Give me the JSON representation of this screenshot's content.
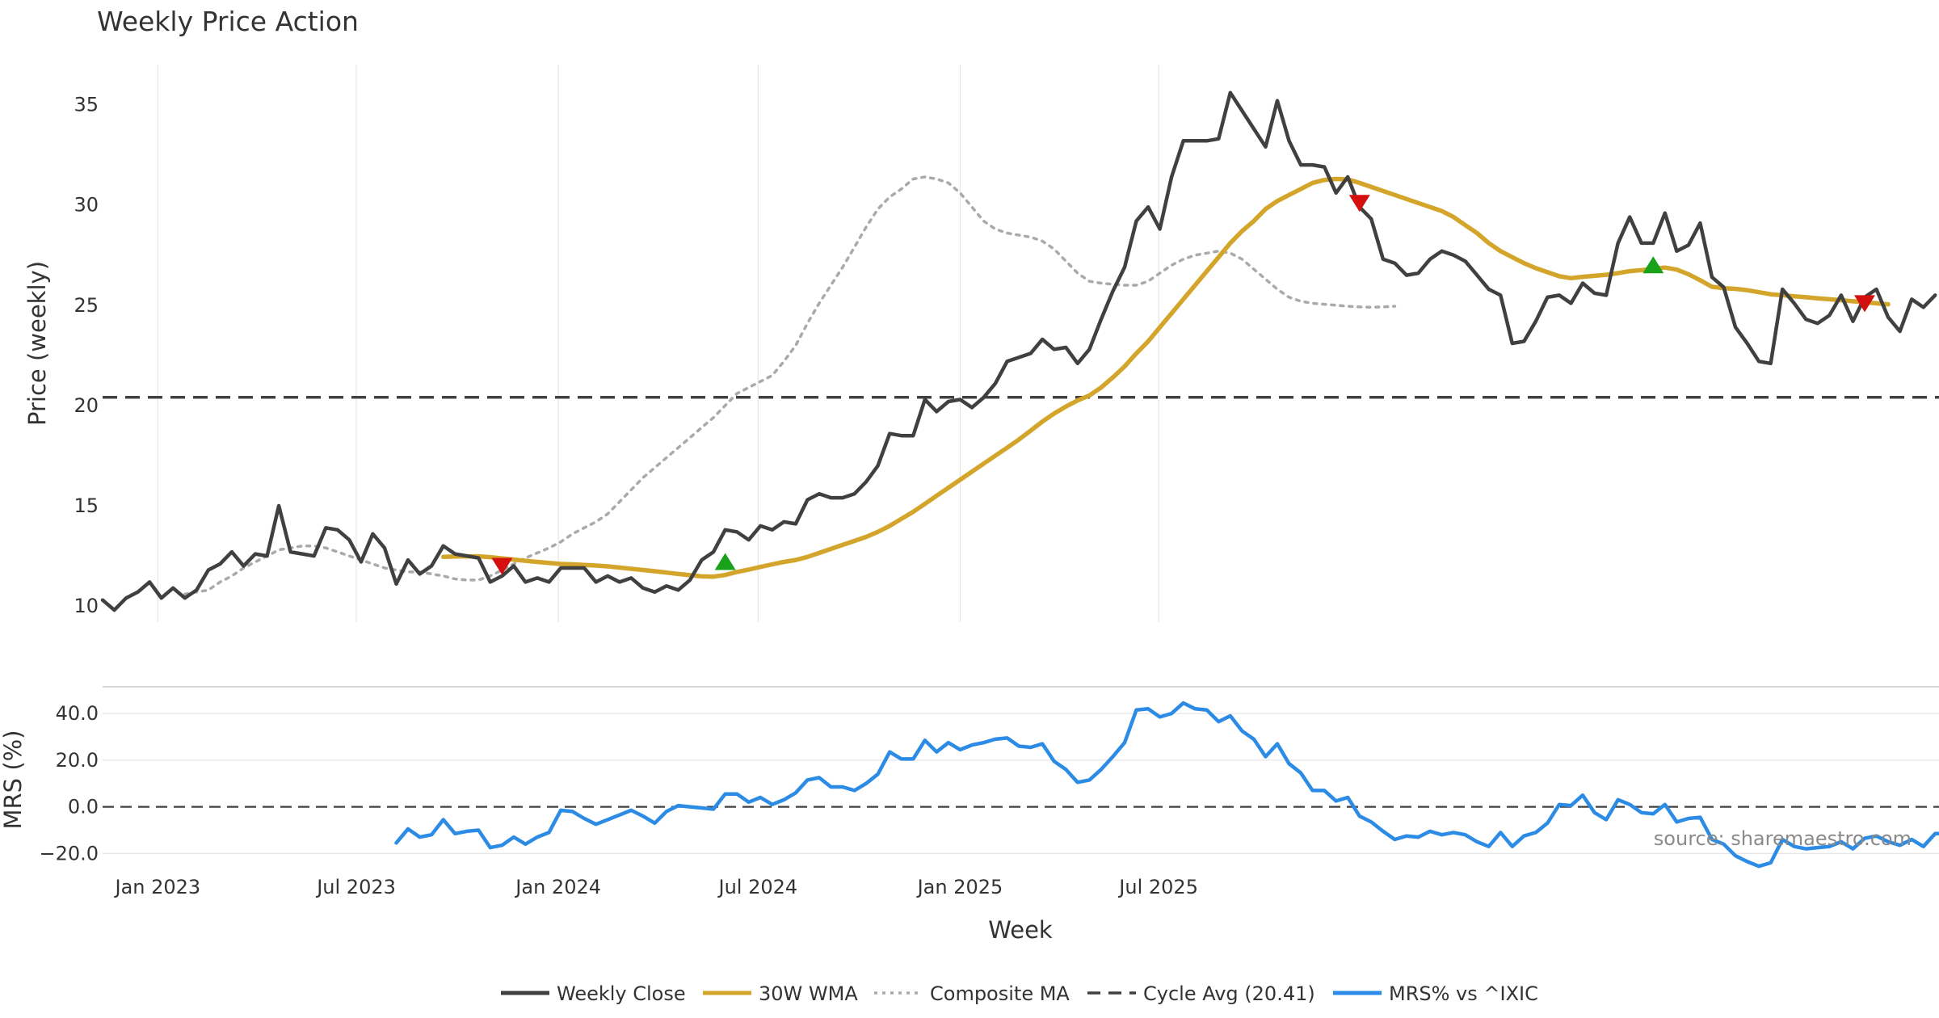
{
  "chart_data": {
    "type": "line",
    "title": "Weekly Price Action",
    "xlabel": "Week",
    "x_tick_labels": [
      "Jan 2023",
      "Jul 2023",
      "Jan 2024",
      "Jul 2024",
      "Jan 2025",
      "Jul 2025"
    ],
    "price_panel": {
      "ylabel": "Price (weekly)",
      "ylim": [
        9.2,
        37.0
      ],
      "yticks": [
        "10",
        "15",
        "20",
        "25",
        "30",
        "35"
      ],
      "weekly_close": [
        10.3,
        9.8,
        10.4,
        10.7,
        11.2,
        10.4,
        10.9,
        10.4,
        10.8,
        11.8,
        12.1,
        12.7,
        12.0,
        12.6,
        12.5,
        15.0,
        12.7,
        12.6,
        12.5,
        13.9,
        13.8,
        13.3,
        12.2,
        13.6,
        12.9,
        11.1,
        12.3,
        11.6,
        12.0,
        13.0,
        12.6,
        12.5,
        12.4,
        11.2,
        11.5,
        12.0,
        11.2,
        11.4,
        11.2,
        11.9,
        11.9,
        11.9,
        11.2,
        11.5,
        11.2,
        11.4,
        10.9,
        10.7,
        11.0,
        10.8,
        11.3,
        12.3,
        12.7,
        13.8,
        13.7,
        13.3,
        14.0,
        13.8,
        14.2,
        14.1,
        15.3,
        15.6,
        15.4,
        15.4,
        15.6,
        16.2,
        17.0,
        18.6,
        18.5,
        18.5,
        20.3,
        19.7,
        20.2,
        20.3,
        19.9,
        20.4,
        21.1,
        22.2,
        22.4,
        22.6,
        23.3,
        22.8,
        22.9,
        22.1,
        22.8,
        24.3,
        25.7,
        26.9,
        29.2,
        29.9,
        28.8,
        31.4,
        33.2,
        33.2,
        33.2,
        33.3,
        35.6,
        34.7,
        33.8,
        32.9,
        35.2,
        33.2,
        32.0,
        32.0,
        31.9,
        30.6,
        31.4,
        29.9,
        29.3,
        27.3,
        27.1,
        26.5,
        26.6,
        27.3,
        27.7,
        27.5,
        27.2,
        26.5,
        25.8,
        25.5,
        23.1,
        23.2,
        24.2,
        25.4,
        25.5,
        25.1,
        26.1,
        25.6,
        25.5,
        28.1,
        29.4,
        28.1,
        28.1,
        29.6,
        27.7,
        28.0,
        29.1,
        26.4,
        25.9,
        23.9,
        23.1,
        22.2,
        22.1,
        25.8,
        25.1,
        24.3,
        24.1,
        24.5,
        25.5,
        24.2,
        25.4,
        25.8,
        24.4,
        23.7,
        25.3,
        24.9,
        25.5
      ],
      "wma_30w": [
        12.45,
        12.47,
        12.48,
        12.48,
        12.44,
        12.38,
        12.32,
        12.26,
        12.2,
        12.15,
        12.1,
        12.08,
        12.05,
        12.02,
        11.98,
        11.92,
        11.86,
        11.8,
        11.74,
        11.67,
        11.6,
        11.54,
        11.48,
        11.47,
        11.55,
        11.7,
        11.82,
        11.95,
        12.08,
        12.2,
        12.3,
        12.45,
        12.65,
        12.85,
        13.05,
        13.25,
        13.45,
        13.7,
        14.0,
        14.35,
        14.7,
        15.1,
        15.5,
        15.9,
        16.3,
        16.7,
        17.1,
        17.5,
        17.9,
        18.3,
        18.75,
        19.2,
        19.6,
        19.95,
        20.25,
        20.5,
        20.9,
        21.4,
        21.95,
        22.6,
        23.2,
        23.9,
        24.6,
        25.3,
        26.0,
        26.7,
        27.4,
        28.1,
        28.7,
        29.2,
        29.8,
        30.2,
        30.5,
        30.8,
        31.1,
        31.25,
        31.3,
        31.28,
        31.1,
        30.9,
        30.7,
        30.5,
        30.3,
        30.1,
        29.9,
        29.7,
        29.4,
        29.0,
        28.6,
        28.1,
        27.7,
        27.4,
        27.1,
        26.85,
        26.65,
        26.45,
        26.35,
        26.42,
        26.47,
        26.52,
        26.6,
        26.7,
        26.75,
        26.82,
        26.88,
        26.78,
        26.55,
        26.25,
        25.92,
        25.85,
        25.82,
        25.75,
        25.65,
        25.55,
        25.5,
        25.45,
        25.4,
        25.35,
        25.3,
        25.25,
        25.2,
        25.15,
        25.1,
        25.05
      ],
      "composite_ma": [
        10.6,
        10.7,
        10.8,
        11.2,
        11.5,
        11.9,
        12.2,
        12.5,
        12.8,
        12.9,
        13.0,
        13.0,
        12.9,
        12.7,
        12.5,
        12.3,
        12.1,
        11.9,
        11.8,
        11.7,
        11.7,
        11.6,
        11.5,
        11.35,
        11.3,
        11.3,
        11.5,
        11.8,
        12.1,
        12.4,
        12.65,
        12.9,
        13.2,
        13.6,
        13.9,
        14.2,
        14.6,
        15.2,
        15.8,
        16.4,
        16.9,
        17.4,
        17.9,
        18.4,
        18.9,
        19.4,
        20.0,
        20.6,
        20.9,
        21.2,
        21.5,
        22.2,
        23.0,
        24.1,
        25.1,
        26.0,
        26.9,
        27.9,
        28.9,
        29.8,
        30.4,
        30.8,
        31.3,
        31.4,
        31.3,
        31.1,
        30.6,
        29.9,
        29.2,
        28.8,
        28.6,
        28.5,
        28.4,
        28.2,
        27.8,
        27.2,
        26.6,
        26.2,
        26.1,
        26.05,
        26.0,
        26.0,
        26.2,
        26.6,
        27.0,
        27.3,
        27.5,
        27.6,
        27.7,
        27.6,
        27.3,
        26.8,
        26.3,
        25.8,
        25.4,
        25.2,
        25.1,
        25.05,
        25.0,
        24.95,
        24.92,
        24.9,
        24.92,
        24.95
      ]
    },
    "composite_ma_start_index": 7,
    "wma_start_index": 29,
    "cycle_avg": {
      "label": "Cycle Avg (20.41)",
      "value": 20.41
    },
    "signals": [
      {
        "type": "sell",
        "index": 34,
        "value": 12.0
      },
      {
        "type": "buy",
        "index": 53,
        "value": 12.2
      },
      {
        "type": "sell",
        "index": 107,
        "value": 30.1
      },
      {
        "type": "buy",
        "index": 132,
        "value": 27.0
      },
      {
        "type": "sell",
        "index": 150,
        "value": 25.1
      }
    ],
    "mrs_panel": {
      "ylabel": "MRS (%)",
      "ylim": [
        -23.0,
        48.0
      ],
      "yticks": [
        "−20.0",
        "0.0",
        "20.0",
        "40.0"
      ],
      "start_index": 25,
      "values": [
        -15.5,
        -9.5,
        -13.0,
        -12.0,
        -5.5,
        -11.5,
        -10.5,
        -10.0,
        -17.5,
        -16.5,
        -13.0,
        -16.0,
        -13.0,
        -11.0,
        -1.5,
        -2.0,
        -5.0,
        -7.5,
        -5.5,
        -3.5,
        -1.5,
        -4.0,
        -7.0,
        -2.0,
        0.5,
        0.0,
        -0.5,
        -1.0,
        5.5,
        5.5,
        2.0,
        4.0,
        1.0,
        3.0,
        6.0,
        11.5,
        12.5,
        8.5,
        8.5,
        7.0,
        10.0,
        14.0,
        23.5,
        20.5,
        20.5,
        28.5,
        23.5,
        27.5,
        24.5,
        26.5,
        27.5,
        29.0,
        29.5,
        26.0,
        25.5,
        27.0,
        19.5,
        16.0,
        10.5,
        11.5,
        16.0,
        21.5,
        27.5,
        41.5,
        42.0,
        38.5,
        40.0,
        44.5,
        42.0,
        41.5,
        36.5,
        39.0,
        32.5,
        29.0,
        21.5,
        27.0,
        18.5,
        14.5,
        7.0,
        7.0,
        2.5,
        4.0,
        -4.0,
        -6.5,
        -10.5,
        -14.0,
        -12.5,
        -13.0,
        -10.5,
        -12.0,
        -11.0,
        -12.0,
        -15.0,
        -17.0,
        -11.0,
        -17.0,
        -12.5,
        -11.0,
        -7.0,
        1.0,
        0.5,
        5.0,
        -2.5,
        -5.5,
        3.0,
        1.0,
        -2.5,
        -3.0,
        1.0,
        -6.5,
        -5.0,
        -4.5,
        -14.0,
        -16.0,
        -21.0,
        -23.5,
        -25.5,
        -24.0,
        -14.0,
        -17.0,
        -18.0,
        -17.5,
        -17.0,
        -15.0,
        -18.0,
        -13.5,
        -12.5,
        -15.0,
        -16.5,
        -14.0,
        -17.0,
        -11.5,
        -11.5
      ]
    },
    "source_text": "source: sharemaestro.com",
    "legend": [
      {
        "label": "Weekly Close",
        "style": "solid",
        "color": "#404040"
      },
      {
        "label": "30W WMA",
        "style": "solid",
        "color": "#d4a52b"
      },
      {
        "label": "Composite MA",
        "style": "dotted",
        "color": "#aaaaaa"
      },
      {
        "label": "Cycle Avg (20.41)",
        "style": "dashed",
        "color": "#404040"
      },
      {
        "label": "MRS% vs ^IXIC",
        "style": "solid",
        "color": "#2b8be5"
      }
    ],
    "colors": {
      "close": "#404040",
      "wma": "#d4a52b",
      "composite": "#aaaaaa",
      "cycle": "#404040",
      "mrs": "#2b8be5",
      "buy": "#1aa11a",
      "sell": "#d40f0f"
    }
  }
}
